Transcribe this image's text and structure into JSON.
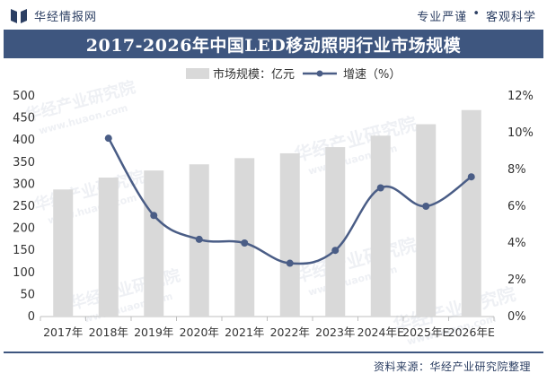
{
  "header": {
    "brand_name": "华经情报网",
    "slogan_part1": "专业严谨",
    "slogan_part2": "客观科学"
  },
  "title": "2017-2026年中国LED移动照明行业市场规模",
  "watermarks": [
    "华经产业研究院",
    "www.huaon.com"
  ],
  "footer": {
    "source": "资料来源：华经产业研究院整理"
  },
  "colors": {
    "bar": "#d9d9d9",
    "line": "#4a5d86",
    "header": "#3e567f",
    "text": "#333333"
  },
  "chart_data": {
    "type": "bar+line",
    "title": "2017-2026年中国LED移动照明行业市场规模",
    "categories": [
      "2017年",
      "2018年",
      "2019年",
      "2020年",
      "2021年",
      "2022年",
      "2023年",
      "2024年E",
      "2025年E",
      "2026年E"
    ],
    "series": [
      {
        "name": "市场规模：亿元",
        "type": "bar",
        "axis": "left",
        "values": [
          288,
          315,
          331,
          345,
          359,
          370,
          384,
          410,
          436,
          468
        ]
      },
      {
        "name": "增速（%）",
        "type": "line",
        "axis": "right",
        "values": [
          null,
          9.7,
          5.5,
          4.2,
          4.0,
          2.9,
          3.6,
          7.0,
          6.0,
          7.6
        ]
      }
    ],
    "y_left": {
      "min": 0,
      "max": 500,
      "ticks": [
        "0",
        "50",
        "100",
        "150",
        "200",
        "250",
        "300",
        "350",
        "400",
        "450",
        "500"
      ]
    },
    "y_right": {
      "min": 0,
      "max": 12,
      "ticks": [
        "0%",
        "2%",
        "4%",
        "6%",
        "8%",
        "10%",
        "12%"
      ]
    },
    "legend": [
      "市场规模：亿元",
      "增速（%）"
    ],
    "legend_position": "top-center"
  }
}
